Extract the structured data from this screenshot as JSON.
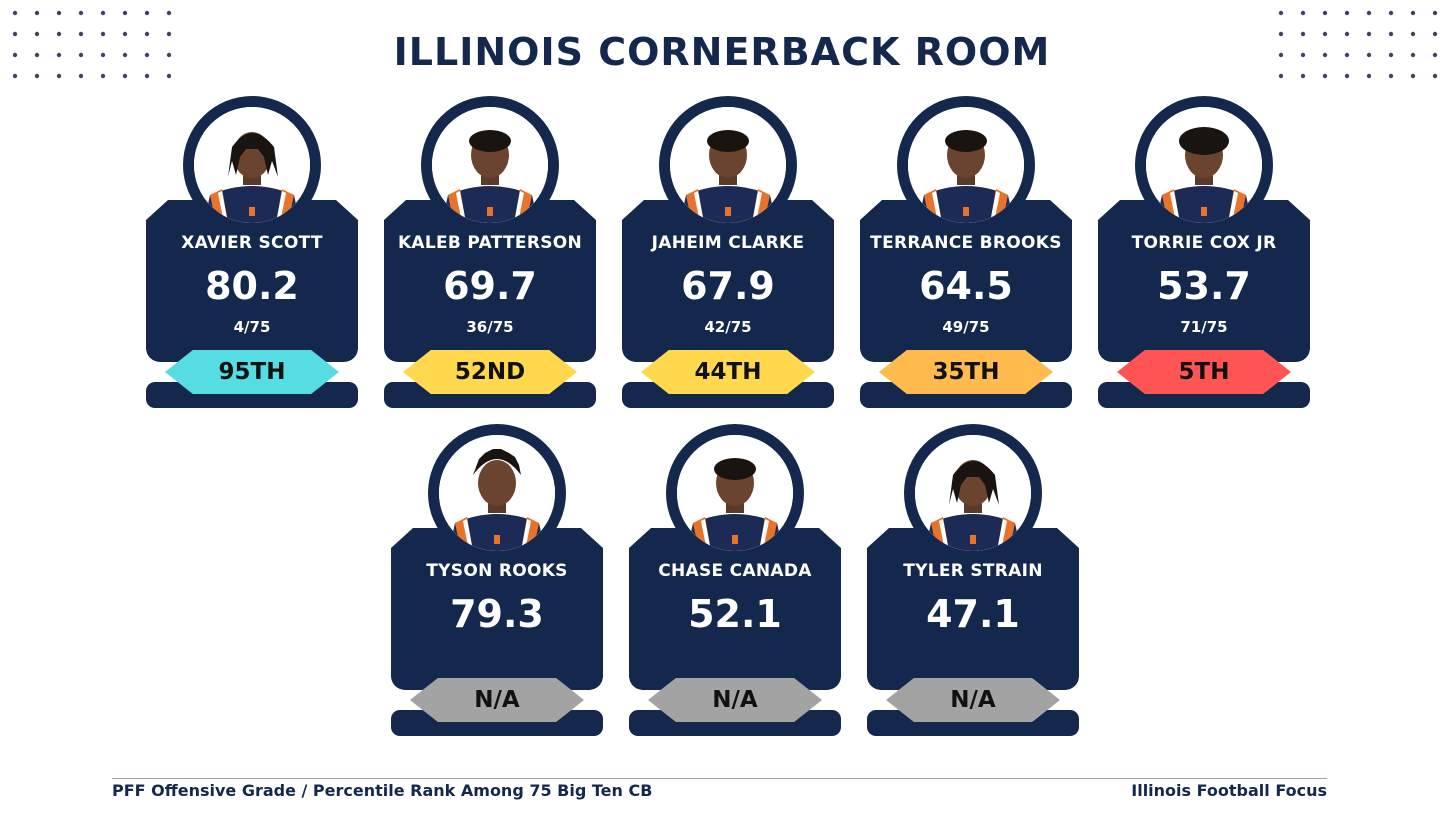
{
  "title": "ILLINOIS CORNERBACK ROOM",
  "players": [
    {
      "name": "XAVIER SCOTT",
      "grade": "80.2",
      "rank": "4/75",
      "percentile": "95TH",
      "badge_color": "#55dde3",
      "hair": "locs"
    },
    {
      "name": "KALEB PATTERSON",
      "grade": "69.7",
      "rank": "36/75",
      "percentile": "52ND",
      "badge_color": "#ffd84d",
      "hair": "short"
    },
    {
      "name": "JAHEIM CLARKE",
      "grade": "67.9",
      "rank": "42/75",
      "percentile": "44TH",
      "badge_color": "#ffd84d",
      "hair": "short"
    },
    {
      "name": "TERRANCE BROOKS",
      "grade": "64.5",
      "rank": "49/75",
      "percentile": "35TH",
      "badge_color": "#ffbb4d",
      "hair": "short"
    },
    {
      "name": "TORRIE COX JR",
      "grade": "53.7",
      "rank": "71/75",
      "percentile": "5TH",
      "badge_color": "#ff5454",
      "hair": "curly"
    },
    {
      "name": "TYSON ROOKS",
      "grade": "79.3",
      "rank": "",
      "percentile": "N/A",
      "badge_color": "#a3a3a3",
      "hair": "twists"
    },
    {
      "name": "CHASE CANADA",
      "grade": "52.1",
      "rank": "",
      "percentile": "N/A",
      "badge_color": "#a3a3a3",
      "hair": "short"
    },
    {
      "name": "TYLER STRAIN",
      "grade": "47.1",
      "rank": "",
      "percentile": "N/A",
      "badge_color": "#a3a3a3",
      "hair": "locs"
    }
  ],
  "footer": {
    "left": "PFF Offensive Grade / Percentile Rank Among 75 Big Ten CB",
    "right": "Illinois Football Focus"
  },
  "colors": {
    "navy": "#13284c",
    "orange": "#e8742b"
  }
}
